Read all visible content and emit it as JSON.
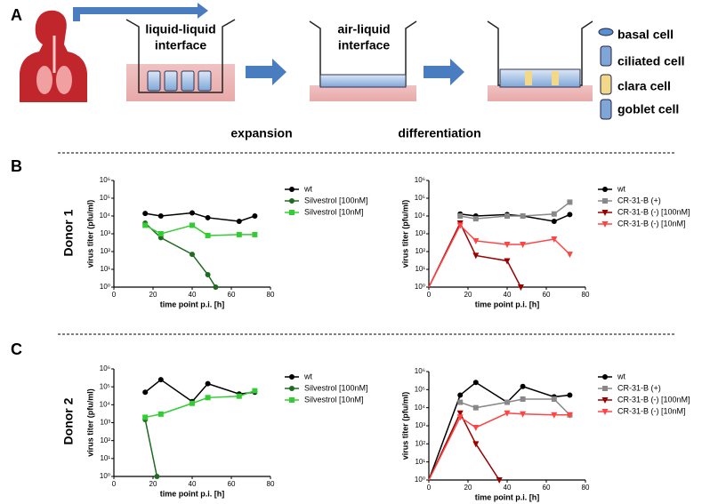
{
  "panel_labels": {
    "a": "A",
    "b": "B",
    "c": "C"
  },
  "donors": [
    "Donor 1",
    "Donor 2"
  ],
  "diagram": {
    "stages": [
      [
        "liquid-liquid",
        "interface"
      ],
      [
        "air-liquid",
        "interface"
      ]
    ],
    "processes": [
      "expansion",
      "differentiation"
    ],
    "cell_types": [
      "basal cell",
      "ciliated cell",
      "clara cell",
      "goblet cell"
    ]
  },
  "chart_data": [
    {
      "type": "line",
      "xlabel": "time point p.i. [h]",
      "ylabel": "virus titer (pfu/ml)",
      "yscale": "log",
      "xlim": [
        0,
        80
      ],
      "xticks": [
        0,
        20,
        40,
        60,
        80
      ],
      "ylim": [
        1,
        1000000
      ],
      "yticks": [
        {
          "value": 1,
          "label": "10⁰"
        },
        {
          "value": 10,
          "label": "10¹"
        },
        {
          "value": 100,
          "label": "10²"
        },
        {
          "value": 1000,
          "label": "10³"
        },
        {
          "value": 10000,
          "label": "10⁴"
        },
        {
          "value": 100000,
          "label": "10⁵"
        },
        {
          "value": 1000000,
          "label": "10⁶"
        }
      ],
      "series": [
        {
          "name": "wt",
          "color": "#000000",
          "marker": "circle",
          "x": [
            16,
            24,
            40,
            48,
            64,
            72
          ],
          "values": [
            14000,
            10000,
            15000,
            8000,
            5000,
            10000
          ]
        },
        {
          "name": "Silvestrol [100nM]",
          "color": "#1f6b1f",
          "marker": "circle",
          "x": [
            16,
            24,
            40,
            48,
            52
          ],
          "values": [
            4000,
            600,
            70,
            5,
            1
          ]
        },
        {
          "name": "Silvestrol [10nM]",
          "color": "#33cc33",
          "marker": "square",
          "x": [
            16,
            24,
            40,
            48,
            64,
            72
          ],
          "values": [
            3000,
            1000,
            3000,
            800,
            900,
            900
          ]
        }
      ]
    },
    {
      "type": "line",
      "xlabel": "time point p.i. [h]",
      "ylabel": "virus titer (pfu/ml)",
      "yscale": "log",
      "xlim": [
        0,
        80
      ],
      "xticks": [
        0,
        20,
        40,
        60,
        80
      ],
      "ylim": [
        1,
        1000000
      ],
      "yticks": [
        {
          "value": 1,
          "label": "10⁰"
        },
        {
          "value": 10,
          "label": "10¹"
        },
        {
          "value": 100,
          "label": "10²"
        },
        {
          "value": 1000,
          "label": "10³"
        },
        {
          "value": 10000,
          "label": "10⁴"
        },
        {
          "value": 100000,
          "label": "10⁵"
        },
        {
          "value": 1000000,
          "label": "10⁶"
        }
      ],
      "series": [
        {
          "name": "wt",
          "color": "#000000",
          "marker": "circle",
          "x": [
            16,
            24,
            40,
            48,
            64,
            72
          ],
          "values": [
            13000,
            10000,
            12000,
            10000,
            5000,
            12000
          ]
        },
        {
          "name": "CR-31-B (+)",
          "color": "#888888",
          "marker": "square",
          "x": [
            16,
            24,
            40,
            48,
            64,
            72
          ],
          "values": [
            10000,
            7000,
            10000,
            10000,
            13000,
            60000
          ]
        },
        {
          "name": "CR-31-B (-) [100nM]",
          "color": "#990000",
          "marker": "triangle",
          "x": [
            0,
            16,
            24,
            40,
            47
          ],
          "values": [
            1,
            4000,
            60,
            30,
            1
          ]
        },
        {
          "name": "CR-31-B (-) [10nM]",
          "color": "#ff4444",
          "marker": "triangle",
          "x": [
            0,
            16,
            24,
            40,
            48,
            64,
            72
          ],
          "values": [
            1,
            3000,
            400,
            250,
            250,
            500,
            70
          ]
        }
      ]
    },
    {
      "type": "line",
      "xlabel": "time point p.i. [h]",
      "ylabel": "virus titer (pfu/ml)",
      "yscale": "log",
      "xlim": [
        0,
        80
      ],
      "xticks": [
        0,
        20,
        40,
        60,
        80
      ],
      "ylim": [
        1,
        1000000
      ],
      "yticks": [
        {
          "value": 1,
          "label": "10⁰"
        },
        {
          "value": 10,
          "label": "10¹"
        },
        {
          "value": 100,
          "label": "10²"
        },
        {
          "value": 1000,
          "label": "10³"
        },
        {
          "value": 10000,
          "label": "10⁴"
        },
        {
          "value": 100000,
          "label": "10⁵"
        },
        {
          "value": 1000000,
          "label": "10⁶"
        }
      ],
      "series": [
        {
          "name": "wt",
          "color": "#000000",
          "marker": "circle",
          "x": [
            16,
            24,
            40,
            48,
            64,
            72
          ],
          "values": [
            50000,
            250000,
            15000,
            150000,
            40000,
            50000
          ]
        },
        {
          "name": "Silvestrol [100nM]",
          "color": "#1f6b1f",
          "marker": "circle",
          "x": [
            16,
            22
          ],
          "values": [
            1500,
            1
          ]
        },
        {
          "name": "Silvestrol [10nM]",
          "color": "#33cc33",
          "marker": "square",
          "x": [
            16,
            24,
            40,
            48,
            64,
            72
          ],
          "values": [
            2000,
            3000,
            12000,
            25000,
            30000,
            60000
          ]
        }
      ]
    },
    {
      "type": "line",
      "xlabel": "time point p.i. [h]",
      "ylabel": "virus titer (pfu/ml)",
      "yscale": "log",
      "xlim": [
        0,
        80
      ],
      "xticks": [
        0,
        20,
        40,
        60,
        80
      ],
      "ylim": [
        1,
        1000000
      ],
      "yticks": [
        {
          "value": 1,
          "label": "10⁰"
        },
        {
          "value": 10,
          "label": "10¹"
        },
        {
          "value": 100,
          "label": "10²"
        },
        {
          "value": 1000,
          "label": "10³"
        },
        {
          "value": 10000,
          "label": "10⁴"
        },
        {
          "value": 100000,
          "label": "10⁵"
        },
        {
          "value": 1000000,
          "label": "10⁶"
        }
      ],
      "series": [
        {
          "name": "wt",
          "color": "#000000",
          "marker": "circle",
          "x": [
            0,
            16,
            24,
            40,
            48,
            64,
            72
          ],
          "values": [
            1,
            50000,
            250000,
            20000,
            150000,
            40000,
            50000
          ]
        },
        {
          "name": "CR-31-B (+)",
          "color": "#888888",
          "marker": "square",
          "x": [
            16,
            24,
            40,
            48,
            64,
            72
          ],
          "values": [
            20000,
            10000,
            20000,
            30000,
            30000,
            4000
          ]
        },
        {
          "name": "CR-31-B (-) [100nM]",
          "color": "#990000",
          "marker": "triangle",
          "x": [
            0,
            16,
            24,
            36
          ],
          "values": [
            1,
            5000,
            100,
            1
          ]
        },
        {
          "name": "CR-31-B (-) [10nM]",
          "color": "#ff4444",
          "marker": "triangle",
          "x": [
            0,
            16,
            24,
            40,
            48,
            64,
            72
          ],
          "values": [
            1,
            3000,
            800,
            5000,
            4500,
            4000,
            4000
          ]
        }
      ]
    }
  ]
}
